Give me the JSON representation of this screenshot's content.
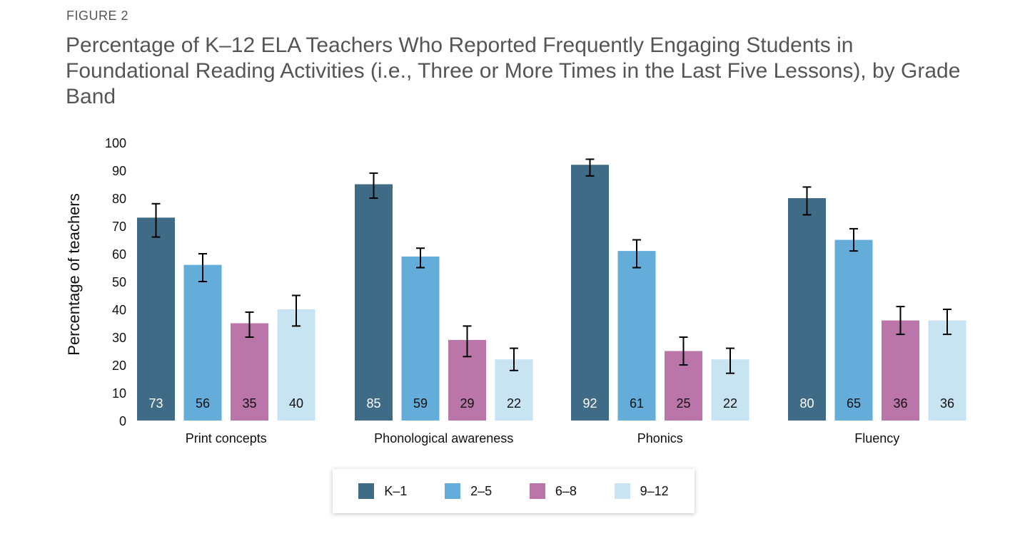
{
  "figure_label": "FIGURE 2",
  "chart_data": {
    "type": "bar",
    "title": "Percentage of K–12 ELA Teachers Who Reported Frequently Engaging Students in Foundational Reading Activities (i.e., Three or More Times in the Last Five Lessons), by Grade Band",
    "xlabel": "",
    "ylabel": "Percentage of teachers",
    "ylim": [
      0,
      100
    ],
    "yticks": [
      0,
      10,
      20,
      30,
      40,
      50,
      60,
      70,
      80,
      90,
      100
    ],
    "grid": false,
    "legend_placement": "bottom",
    "categories": [
      "Print concepts",
      "Phonological awareness",
      "Phonics",
      "Fluency"
    ],
    "series": [
      {
        "name": "K–1",
        "color": "#3f6b87",
        "label_color": "#ffffff",
        "values": [
          73,
          85,
          92,
          80
        ],
        "error_low": [
          66,
          80,
          88,
          74
        ],
        "error_high": [
          78,
          89,
          94,
          84
        ]
      },
      {
        "name": "2–5",
        "color": "#64acda",
        "label_color": "#111111",
        "values": [
          56,
          59,
          61,
          65
        ],
        "error_low": [
          50,
          55,
          55,
          61
        ],
        "error_high": [
          60,
          62,
          65,
          69
        ]
      },
      {
        "name": "6–8",
        "color": "#ba76a9",
        "label_color": "#111111",
        "values": [
          35,
          29,
          25,
          36
        ],
        "error_low": [
          30,
          23,
          20,
          31
        ],
        "error_high": [
          39,
          34,
          30,
          41
        ]
      },
      {
        "name": "9–12",
        "color": "#c8e3f2",
        "label_color": "#111111",
        "values": [
          40,
          22,
          22,
          36
        ],
        "error_low": [
          34,
          18,
          17,
          31
        ],
        "error_high": [
          45,
          26,
          26,
          40
        ]
      }
    ]
  }
}
